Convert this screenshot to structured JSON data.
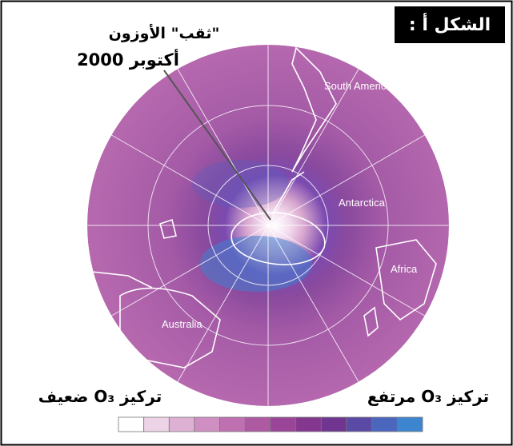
{
  "figure_label": "الشكل أ :",
  "annotation": {
    "title": "\"ثقب\" الأوزون",
    "date": "أكتوبر 2000"
  },
  "regions": [
    "South America",
    "Antarctica",
    "Africa",
    "Australia"
  ],
  "legend": {
    "low_label": "تركيز O₃ ضعيف",
    "high_label": "تركيز O₃ مرتفع",
    "colors": [
      "#ffffff",
      "#ecd3e6",
      "#deb1d4",
      "#cf8fc2",
      "#bf70b0",
      "#ae5aa2",
      "#9a4597",
      "#84378f",
      "#6f3590",
      "#5a4aa6",
      "#4a67bd",
      "#3d86cf"
    ]
  }
}
